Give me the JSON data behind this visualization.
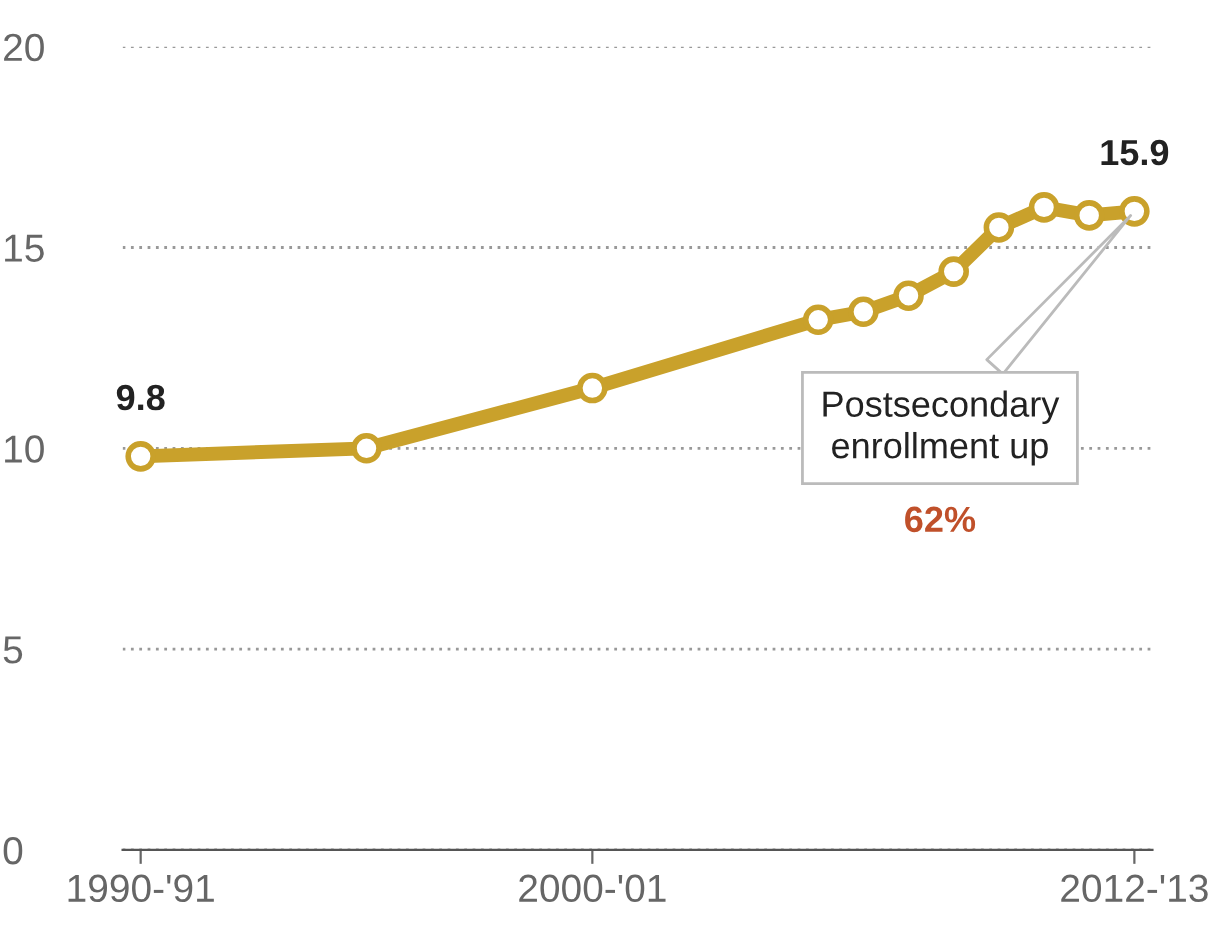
{
  "chart_data": {
    "type": "line",
    "categories": [
      "1990-'91",
      null,
      null,
      null,
      null,
      null,
      null,
      null,
      null,
      null,
      "2000-'01",
      null,
      null,
      null,
      null,
      null,
      null,
      null,
      null,
      null,
      null,
      null,
      "2012-'13"
    ],
    "series": [
      {
        "color": "#c9a12b",
        "values": [
          9.8,
          null,
          null,
          null,
          null,
          10.0,
          null,
          null,
          null,
          null,
          11.5,
          null,
          null,
          null,
          null,
          13.2,
          13.4,
          13.8,
          14.4,
          15.5,
          16.0,
          15.8,
          15.9
        ],
        "value_labels": [
          "9.8",
          null,
          null,
          null,
          null,
          null,
          null,
          null,
          null,
          null,
          null,
          null,
          null,
          null,
          null,
          null,
          null,
          null,
          null,
          null,
          null,
          null,
          "15.9"
        ]
      }
    ],
    "ylim": [
      0,
      20
    ],
    "yticks": [
      0,
      5,
      10,
      15,
      20
    ],
    "grid": "y",
    "marker": "circle",
    "line_style": "solid",
    "annotations": [
      "Postsecondary\nenrollment up",
      "62%"
    ]
  }
}
